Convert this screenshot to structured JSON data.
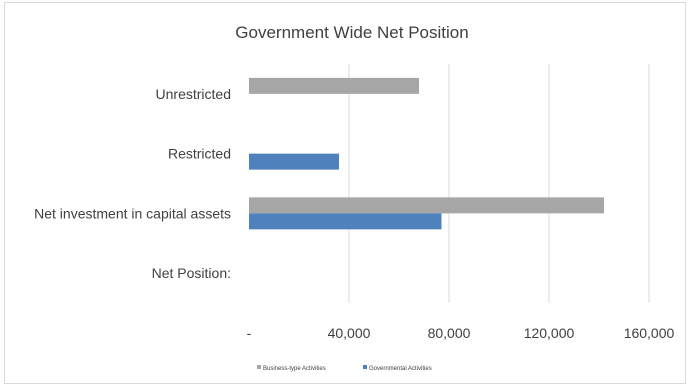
{
  "chart_data": {
    "type": "bar",
    "orientation": "horizontal",
    "title": "Government Wide Net Position",
    "categories": [
      "Unrestricted",
      "Restricted",
      "Net investment in capital assets",
      "Net Position:"
    ],
    "series": [
      {
        "name": "Business-type Activities",
        "color": "#a6a6a6",
        "values": [
          68000,
          null,
          142000,
          null
        ]
      },
      {
        "name": "Governmental Activities",
        "color": "#4f81bd",
        "values": [
          null,
          36000,
          77000,
          null
        ]
      }
    ],
    "xlim": [
      0,
      160000
    ],
    "x_ticks": [
      0,
      40000,
      80000,
      120000,
      160000
    ],
    "x_tick_labels": [
      "-",
      "40,000",
      "80,000",
      "120,000",
      "160,000"
    ],
    "grid": "vertical",
    "legend_position": "bottom"
  }
}
